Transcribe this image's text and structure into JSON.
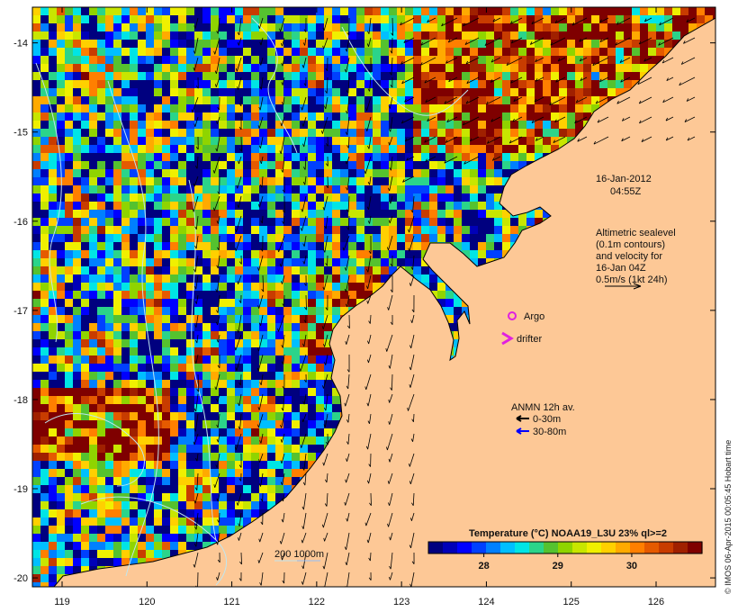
{
  "map": {
    "lon_ticks": [
      "119",
      "120",
      "121",
      "122",
      "123",
      "124",
      "125",
      "126"
    ],
    "lat_ticks": [
      "-14",
      "-15",
      "-16",
      "-17",
      "-18",
      "-19",
      "-20"
    ],
    "lon_range": [
      118.65,
      126.7
    ],
    "lat_range": [
      -20.1,
      -13.6
    ],
    "land_color": "#fdc896",
    "coast_color": "#000000",
    "contour_color": "#bfe6f0"
  },
  "date": {
    "line1": "16-Jan-2012",
    "line2": "04:55Z"
  },
  "altimetry": {
    "lines": [
      "Altimetric sealevel",
      "(0.1m contours)",
      "and velocity for",
      "16-Jan 04Z",
      "0.5m/s (1kt 24h)"
    ]
  },
  "argo_label": "Argo",
  "drifter_label": "drifter",
  "anmn": {
    "title": "ANMN 12h av.",
    "items": [
      {
        "label": "0-30m",
        "color": "#000000"
      },
      {
        "label": "30-80m",
        "color": "#0000ff"
      }
    ]
  },
  "scale_label": "200  1000m",
  "colorbar": {
    "title": "Temperature (°C) NOAA19_L3U 23% ql>=2",
    "tick_labels": [
      "28",
      "29",
      "30"
    ],
    "tick_values": [
      28,
      29,
      30
    ],
    "range": [
      27.25,
      30.95
    ],
    "colors": [
      "#00007f",
      "#0000b8",
      "#0000ff",
      "#0040ff",
      "#0080ff",
      "#00bfff",
      "#00e5e5",
      "#2bd48a",
      "#55c22f",
      "#8fd400",
      "#c8e600",
      "#f0f000",
      "#ffd000",
      "#ffaa00",
      "#ff7f00",
      "#e55a00",
      "#c83c00",
      "#a02000",
      "#7f0000"
    ]
  },
  "credit": "© IMOS 06-Apr-2015 00:05:45 Hobart time"
}
